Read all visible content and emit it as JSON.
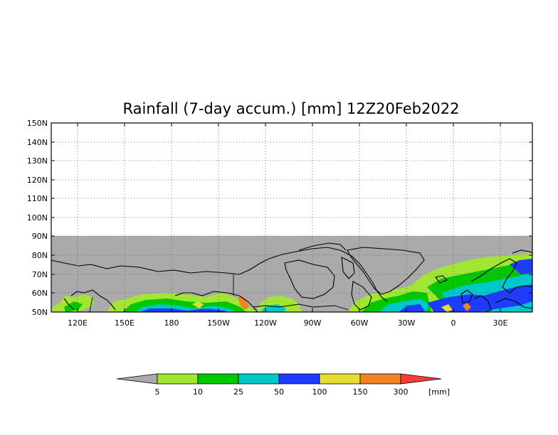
{
  "title": "Rainfall (7-day accum.) [mm] 12Z20Feb2022",
  "map": {
    "lat_labels": [
      "150N",
      "140N",
      "130N",
      "120N",
      "110N",
      "100N",
      "90N",
      "80N",
      "70N",
      "60N",
      "50N"
    ],
    "lon_labels": [
      "120E",
      "150E",
      "180",
      "150W",
      "120W",
      "90W",
      "60W",
      "30W",
      "0",
      "30E"
    ],
    "lat_range": [
      50,
      150
    ],
    "lon_range_deg_east": [
      100,
      50
    ],
    "valid_data_lat_max": 90,
    "no_data_color": "#aaaaaa",
    "grid": "dotted"
  },
  "colorbar": {
    "boundaries": [
      "5",
      "10",
      "25",
      "50",
      "100",
      "150",
      "300"
    ],
    "unit": "[mm]",
    "colors": [
      "#aaaaaa",
      "#a0e632",
      "#00c800",
      "#00c8c8",
      "#1e3cff",
      "#e6dc32",
      "#f08228",
      "#fa3c3c"
    ]
  }
}
